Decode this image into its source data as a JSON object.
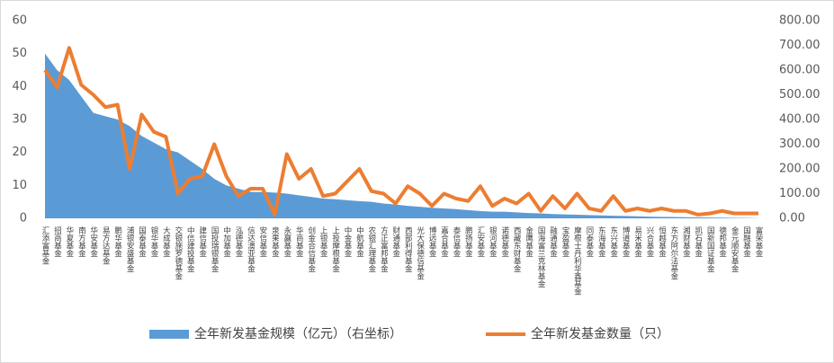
{
  "chart_data": {
    "type": "combo",
    "categories": [
      "汇添富基金",
      "招商基金",
      "华夏基金",
      "南方基金",
      "华安基金",
      "易方达基金",
      "鹏华基金",
      "浦银安盛基金",
      "国泰基金",
      "银华基金",
      "大成基金",
      "交银施罗德基金",
      "中信建投基金",
      "建信基金",
      "国投瑞银基金",
      "中加基金",
      "泓德基金",
      "信达澳亚基金",
      "安信基金",
      "泉果基金",
      "永赢基金",
      "华商基金",
      "创金合信基金",
      "上银基金",
      "上投摩根基金",
      "中金基金",
      "中航基金",
      "农银汇理基金",
      "方正富邦基金",
      "财通基金",
      "西部利得基金",
      "光大保德信基金",
      "博远基金",
      "嘉合基金",
      "泰信基金",
      "鹏扬基金",
      "汇安基金",
      "银河基金",
      "诺德基金",
      "西藏东财基金",
      "金鹰基金",
      "国海富兰克林基金",
      "融通基金",
      "宝盈基金",
      "摩根士丹利华鑫基金",
      "同泰基金",
      "东海基金",
      "东兴基金",
      "博道基金",
      "易米基金",
      "兴合基金",
      "恒越基金",
      "东方阿尔法基金",
      "湘财基金",
      "凯石基金",
      "国新国证基金",
      "德邦基金",
      "金元顺安基金",
      "国融基金",
      "富荣基金"
    ],
    "series": [
      {
        "name": "全年新发基金规模（亿元）（右坐标）",
        "type": "area",
        "color": "#5b9bd5",
        "values": [
          50,
          45,
          42,
          37,
          32,
          31,
          30,
          28,
          25,
          23,
          21,
          20,
          17.5,
          15,
          12,
          10,
          9,
          8,
          8,
          7.8,
          7.5,
          7,
          6.5,
          6,
          5.8,
          5.5,
          5.2,
          5,
          4.5,
          4.2,
          3.8,
          3.5,
          3.2,
          3,
          2.8,
          2.5,
          2.2,
          2,
          2,
          1.8,
          1.6,
          1.5,
          1.3,
          1.2,
          1.1,
          1,
          0.9,
          0.8,
          0.7,
          0.6,
          0.5,
          0.45,
          0.4,
          0.35,
          0.3,
          0.25,
          0.2,
          0.15,
          0.1,
          0.05
        ]
      },
      {
        "name": "全年新发基金数量（只）",
        "type": "line",
        "axis": "y2",
        "color": "#ed7d31",
        "values": [
          600,
          530,
          690,
          540,
          500,
          450,
          460,
          200,
          420,
          350,
          330,
          100,
          160,
          170,
          300,
          170,
          90,
          120,
          120,
          15,
          260,
          160,
          200,
          90,
          100,
          150,
          200,
          110,
          100,
          60,
          130,
          100,
          50,
          100,
          80,
          70,
          130,
          50,
          80,
          60,
          100,
          30,
          90,
          40,
          100,
          40,
          30,
          90,
          30,
          40,
          30,
          40,
          30,
          30,
          15,
          20,
          30,
          20,
          20,
          20
        ]
      }
    ],
    "ylim": [
      0,
      60
    ],
    "yticks": [
      0,
      10,
      20,
      30,
      40,
      50,
      60
    ],
    "y2lim": [
      0,
      800
    ],
    "y2ticks": [
      {
        "value": 0,
        "label": "0.00"
      },
      {
        "value": 100,
        "label": "100.00"
      },
      {
        "value": 200,
        "label": "200.00"
      },
      {
        "value": 300,
        "label": "300.00"
      },
      {
        "value": 400,
        "label": "400.00"
      },
      {
        "value": 500,
        "label": "500.00"
      },
      {
        "value": 600,
        "label": "600.00"
      },
      {
        "value": 700,
        "label": "700.00"
      },
      {
        "value": 800,
        "label": "800.00"
      }
    ],
    "legend": "bottom"
  }
}
